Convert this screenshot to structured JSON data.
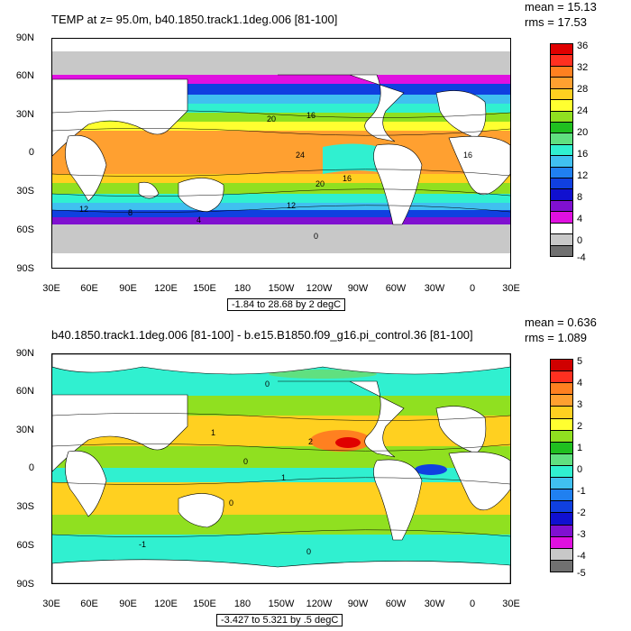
{
  "panels": [
    {
      "id": "top",
      "title": "TEMP at z=  95.0m, b40.1850.track1.1deg.006 [81-100]",
      "stats": {
        "mean": "mean = 15.13",
        "rms": "rms = 17.53"
      },
      "range_text": "-1.84 to 28.68 by 2 degC",
      "lat_labels": [
        "90N",
        "60N",
        "30N",
        "0",
        "30S",
        "60S",
        "90S"
      ],
      "lon_labels": [
        "30E",
        "60E",
        "90E",
        "120E",
        "150E",
        "180",
        "150W",
        "120W",
        "90W",
        "60W",
        "30W",
        "0",
        "30E"
      ],
      "colorbar_labels": [
        "36",
        "32",
        "28",
        "24",
        "20",
        "16",
        "12",
        "8",
        "4",
        "0",
        "-4"
      ],
      "colorbar_colors": [
        "#e00000",
        "#ff3020",
        "#ff8020",
        "#ffa030",
        "#ffd020",
        "#ffff30",
        "#90e020",
        "#20c020",
        "#60e080",
        "#30f0d0",
        "#40c0f0",
        "#2080f0",
        "#1040e0",
        "#1010d0",
        "#8010d0",
        "#e010e0",
        "#ffffff",
        "#c8c8c8",
        "#707070"
      ],
      "contour_labels": [
        "20",
        "16",
        "24",
        "20",
        "16",
        "12",
        "8",
        "4",
        "0",
        "16",
        "12"
      ]
    },
    {
      "id": "bottom",
      "title": "b40.1850.track1.1deg.006 [81-100] - b.e15.B1850.f09_g16.pi_control.36 [81-100]",
      "stats": {
        "mean": "mean = 0.636",
        "rms": "rms = 1.089"
      },
      "range_text": "-3.427 to 5.321 by .5 degC",
      "lat_labels": [
        "90N",
        "60N",
        "30N",
        "0",
        "30S",
        "60S",
        "90S"
      ],
      "lon_labels": [
        "30E",
        "60E",
        "90E",
        "120E",
        "150E",
        "180",
        "150W",
        "120W",
        "90W",
        "60W",
        "30W",
        "0",
        "30E"
      ],
      "colorbar_labels": [
        "5",
        "4",
        "3",
        "2",
        "1",
        "0",
        "-1",
        "-2",
        "-3",
        "-4",
        "-5"
      ],
      "colorbar_colors": [
        "#d00000",
        "#ff3020",
        "#ff8020",
        "#ffa030",
        "#ffd020",
        "#ffff30",
        "#90e020",
        "#20c020",
        "#60e080",
        "#30f0d0",
        "#40c0f0",
        "#2080f0",
        "#1040e0",
        "#1010d0",
        "#8010d0",
        "#e010e0",
        "#c8c8c8",
        "#707070"
      ],
      "contour_labels": [
        "0",
        "1",
        "2",
        "0",
        "1",
        "0",
        "-1",
        "0"
      ]
    }
  ],
  "land_color": "#ffffff",
  "missing_color": "#c8c8c8"
}
